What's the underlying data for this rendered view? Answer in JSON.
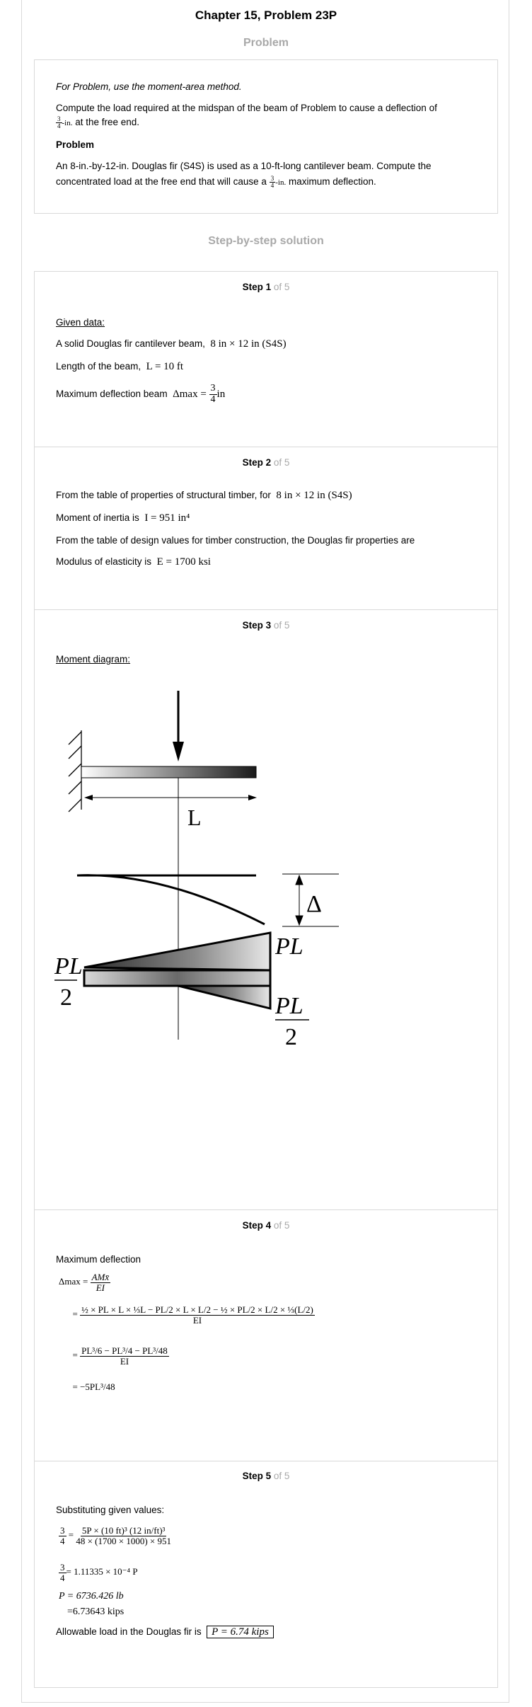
{
  "title": "Chapter 15, Problem 23P",
  "problem_heading": "Problem",
  "problem": {
    "instruction": "For Problem, use the moment-area method.",
    "line1": "Compute the load required at the midspan of the beam of Problem to cause a deflection of",
    "frac_num": "3",
    "frac_den": "4",
    "line2_unit": "-in.",
    "line2_rest": " at the free end.",
    "sub_heading": "Problem",
    "para2_line1": "An 8-in.-by-12-in. Douglas fir (S4S) is used as a 10-ft-long cantilever beam. Compute the",
    "para2_line2_pre": "concentrated load at the free end that will cause a",
    "para2_line2_post": " maximum deflection."
  },
  "solution_heading": "Step-by-step solution",
  "step_label": "Step",
  "of_label": "of 5",
  "steps": [
    {
      "number": "1",
      "given_label": "Given data:",
      "line1": "A solid Douglas fir cantilever beam,",
      "line1_math": "8 in × 12 in (S4S)",
      "line2": "Length of the beam,",
      "line2_math": "L = 10 ft",
      "line3": "Maximum deflection beam",
      "line3_math_pre": "Δmax =",
      "line3_num": "3",
      "line3_den": "4",
      "line3_unit": "in"
    },
    {
      "number": "2",
      "line1": "From the table of properties of structural timber, for",
      "line1_math": "8 in × 12 in (S4S)",
      "line2": "Moment of inertia is",
      "line2_math": "I = 951 in⁴",
      "line3": "From the table of design values for timber construction, the Douglas fir properties are",
      "line4": "Modulus of elasticity is",
      "line4_math": "E = 1700 ksi"
    },
    {
      "number": "3",
      "label": "Moment diagram:",
      "diagram": {
        "length_label": "L",
        "deflection_label": "Δ",
        "moment_top": "PL",
        "moment_left_num": "PL",
        "moment_left_den": "2",
        "moment_right_num": "PL",
        "moment_right_den": "2"
      }
    },
    {
      "number": "4",
      "label": "Maximum deflection",
      "eq1_lhs": "Δmax",
      "eq1_num": "AMx̄",
      "eq1_den": "EI",
      "eq2_num": "½ × PL × L × ⅓L − PL/2 × L × L/2 − ½ × PL/2 × L/2 × ⅓(L/2)",
      "eq2_den": "EI",
      "eq3_num": "PL³/6 − PL³/4 − PL³/48",
      "eq3_den": "EI",
      "eq4": "= −5PL³/48"
    },
    {
      "number": "5",
      "label": "Substituting given values:",
      "eq1_lhs_num": "3",
      "eq1_lhs_den": "4",
      "eq1_num": "5P × (10 ft)³ (12 in/ft)³",
      "eq1_den": "48 × (1700 × 1000) × 951",
      "eq2": "= 1.11335 × 10⁻⁴ P",
      "eq3": "P = 6736.426 lb",
      "eq4": "=6.73643 kips",
      "final_text": "Allowable load in the Douglas fir is",
      "final_answer": "P = 6.74 kips"
    }
  ]
}
